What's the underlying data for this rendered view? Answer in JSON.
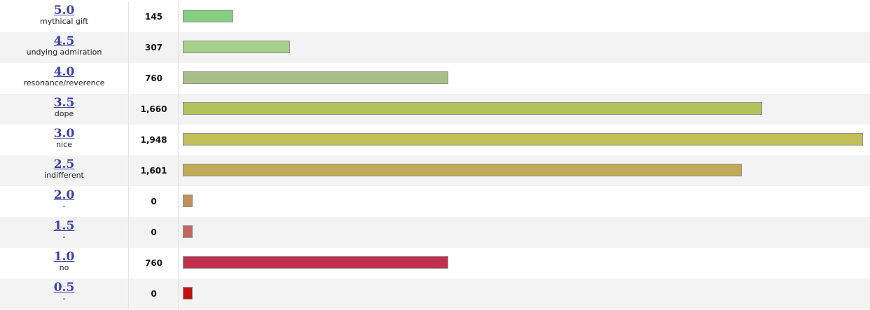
{
  "max_count": 1948,
  "rows": [
    {
      "rating": "5.0",
      "desc": "mythical gift",
      "count": "145",
      "count_value": 145,
      "color": "#87ce84"
    },
    {
      "rating": "4.5",
      "desc": "undying admiration",
      "count": "307",
      "count_value": 307,
      "color": "#a6cf8a"
    },
    {
      "rating": "4.0",
      "desc": "resonance/reverence",
      "count": "760",
      "count_value": 760,
      "color": "#a9bf8a"
    },
    {
      "rating": "3.5",
      "desc": "dope",
      "count": "1,660",
      "count_value": 1660,
      "color": "#b1c25a"
    },
    {
      "rating": "3.0",
      "desc": "nice",
      "count": "1,948",
      "count_value": 1948,
      "color": "#c2bf58"
    },
    {
      "rating": "2.5",
      "desc": "indifferent",
      "count": "1,601",
      "count_value": 1601,
      "color": "#bfaa55"
    },
    {
      "rating": "2.0",
      "desc": "-",
      "count": "0",
      "count_value": 0,
      "color": "#c09055"
    },
    {
      "rating": "1.5",
      "desc": "-",
      "count": "0",
      "count_value": 0,
      "color": "#c3655e"
    },
    {
      "rating": "1.0",
      "desc": "no",
      "count": "760",
      "count_value": 760,
      "color": "#c2304f"
    },
    {
      "rating": "0.5",
      "desc": "-",
      "count": "0",
      "count_value": 0,
      "color": "#c41010"
    }
  ]
}
